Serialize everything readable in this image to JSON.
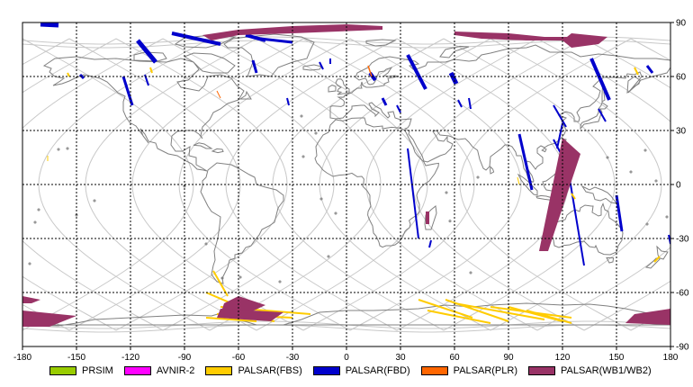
{
  "map": {
    "lon_ticks": [
      "-180",
      "-150",
      "-120",
      "-90",
      "-60",
      "-30",
      "0",
      "30",
      "60",
      "90",
      "120",
      "150",
      "180"
    ],
    "lat_ticks": [
      "90",
      "60",
      "30",
      "0",
      "-30",
      "-60",
      "-90"
    ],
    "lon_range": [
      -180,
      180
    ],
    "lat_range": [
      -90,
      90
    ],
    "grid": true,
    "frame_color": "#000000",
    "grid_color": "#000000",
    "land_outline_color": "#808080",
    "orbit_track_color": "#c8c8c8"
  },
  "legend": {
    "items": [
      {
        "label": "PRSIM",
        "color": "#99cc00"
      },
      {
        "label": "AVNIR-2",
        "color": "#ff00ff"
      },
      {
        "label": "PALSAR(FBS)",
        "color": "#ffcc00"
      },
      {
        "label": "PALSAR(FBD)",
        "color": "#0000cc"
      },
      {
        "label": "PALSAR(PLR)",
        "color": "#ff6600"
      },
      {
        "label": "PALSAR(WB1/WB2)",
        "color": "#993366"
      }
    ]
  }
}
